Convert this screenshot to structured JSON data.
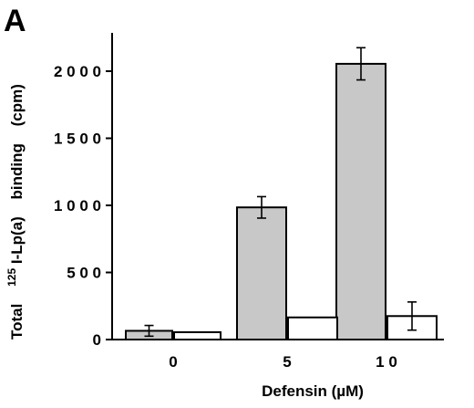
{
  "panel_label": "A",
  "chart_data": {
    "type": "bar",
    "categories": [
      "0",
      "5",
      "10"
    ],
    "series": [
      {
        "fill": "#c8c8c8",
        "values": [
          65,
          985,
          2055
        ],
        "errors": [
          40,
          80,
          120
        ]
      },
      {
        "fill": "#ffffff",
        "values": [
          55,
          165,
          175
        ],
        "errors": [
          0,
          0,
          105
        ]
      }
    ],
    "xlabel": "Defensin   (µM)",
    "ylabel": {
      "word1": "Total",
      "superscript": "125",
      "word2": "I-Lp(a)",
      "word3": "binding",
      "word4": "(cpm)"
    },
    "yticks": [
      0,
      500,
      1000,
      1500,
      2000
    ],
    "ytick_labels": [
      "0",
      "5 0 0",
      "1 0 0 0",
      "1 5 0 0",
      "2 0 0 0"
    ],
    "xtick_labels": [
      "0",
      "5",
      "1 0"
    ],
    "ylim": [
      0,
      2500
    ],
    "grid": false
  }
}
